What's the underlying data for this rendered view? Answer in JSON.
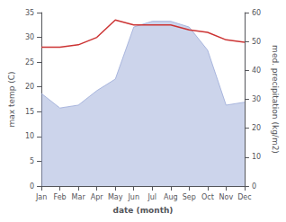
{
  "chart_data": {
    "type": "line",
    "xlabel": "date (month)",
    "ylabel": "max temp (C)",
    "y2label": "med. precipitation (kg/m2)",
    "categories": [
      "Jan",
      "Feb",
      "Mar",
      "Apr",
      "May",
      "Jun",
      "Jul",
      "Aug",
      "Sep",
      "Oct",
      "Nov",
      "Dec"
    ],
    "series": [
      {
        "type": "area",
        "axis": "y2",
        "color": "#9aaad8",
        "values": [
          32,
          27,
          28,
          33,
          37,
          55,
          57,
          57,
          55,
          47,
          28,
          29
        ]
      },
      {
        "type": "line",
        "color": "#cc3333",
        "values": [
          28.0,
          28.0,
          28.5,
          30.0,
          33.5,
          32.5,
          32.5,
          32.5,
          31.5,
          31.0,
          29.5,
          29.0
        ]
      }
    ],
    "ylim": [
      0,
      35
    ],
    "yticks": [
      0,
      5,
      10,
      15,
      20,
      25,
      30,
      35
    ],
    "y2lim": [
      0,
      60
    ],
    "y2ticks": [
      0,
      10,
      20,
      30,
      40,
      50,
      60
    ],
    "grid": false
  }
}
